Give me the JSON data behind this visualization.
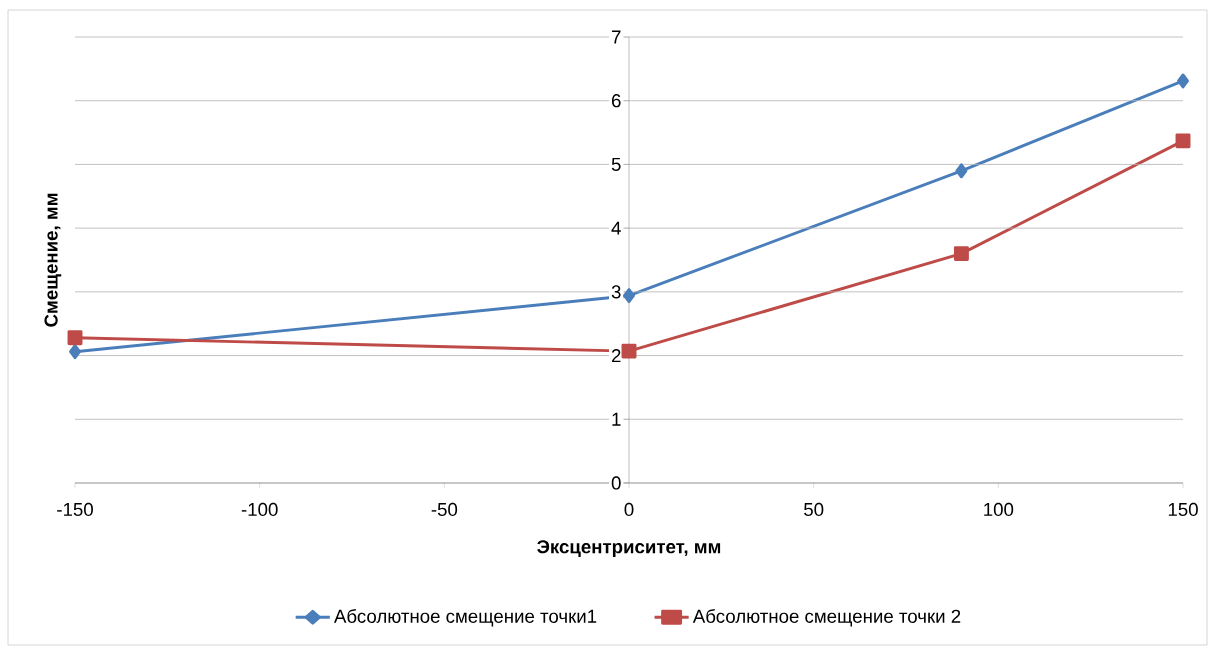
{
  "chart_data": {
    "type": "line",
    "xlabel": "Эксцентриситет, мм",
    "ylabel": "Смещение, мм",
    "x": [
      -150,
      0,
      90,
      150
    ],
    "series": [
      {
        "name": "Абсолютное смещение точки1",
        "color": "#4a7ebb",
        "marker": "diamond",
        "values": [
          2.06,
          2.94,
          4.9,
          6.31
        ]
      },
      {
        "name": "Абсолютное смещение точки 2",
        "color": "#be4b48",
        "marker": "square",
        "values": [
          2.28,
          2.07,
          3.6,
          5.37
        ]
      }
    ],
    "xlim": [
      -150,
      150
    ],
    "ylim": [
      0,
      7
    ],
    "xticks": [
      -150,
      -100,
      -50,
      0,
      50,
      100,
      150
    ],
    "yticks": [
      0,
      1,
      2,
      3,
      4,
      5,
      6,
      7
    ],
    "grid": "y",
    "legend": "bottom",
    "line_style": "solid"
  }
}
